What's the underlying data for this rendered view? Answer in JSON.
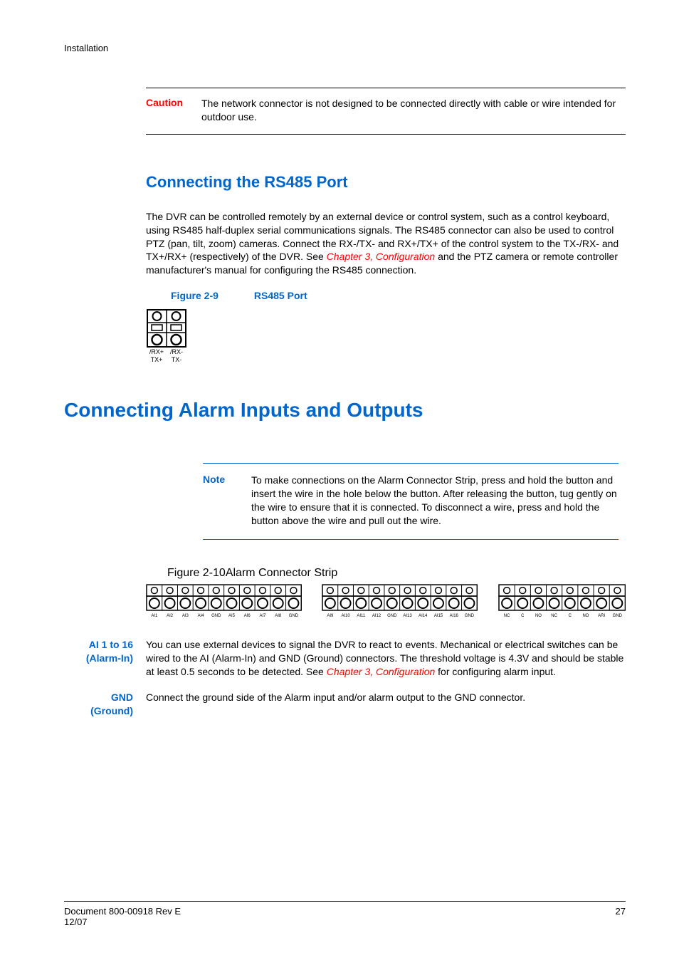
{
  "running_header": "Installation",
  "caution": {
    "label": "Caution",
    "text": "The network connector is not designed to be connected directly with cable or wire intended for outdoor use."
  },
  "section_rs485": {
    "heading": "Connecting the RS485 Port",
    "para_pre": "The DVR can be controlled remotely by an external device or control system, such as a control keyboard, using RS485 half-duplex serial communications signals. The RS485 connector can also be used to control PTZ (pan, tilt, zoom) cameras. Connect the RX-/TX- and RX+/TX+ of the control system to the TX-/RX- and TX+/RX+ (respectively) of the DVR. See ",
    "para_link": "Chapter 3, Configuration",
    "para_post": " and the PTZ camera or remote controller manufacturer's manual for configuring the RS485 connection.",
    "fig_num": "Figure 2-9",
    "fig_title": "RS485 Port",
    "port_labels": {
      "left": "/RX+",
      "right": "/RX-",
      "left2": "TX+",
      "right2": "TX-"
    }
  },
  "section_alarm": {
    "heading": "Connecting Alarm Inputs and Outputs",
    "note_label": "Note",
    "note_text": "To make connections on the Alarm Connector Strip, press and hold the button and insert the wire in the hole below the button. After releasing the button, tug gently on the wire to ensure that it is connected. To disconnect a wire, press and hold the button above the wire and pull out the wire.",
    "fig_num": "Figure 2-10",
    "fig_title": "Alarm Connector Strip",
    "strip1_labels": [
      "AI1",
      "AI2",
      "AI3",
      "AI4",
      "GND",
      "AI5",
      "AI6",
      "AI7",
      "AI8",
      "GND"
    ],
    "strip2_labels": [
      "AI9",
      "AI10",
      "AI11",
      "AI12",
      "GND",
      "AI13",
      "AI14",
      "AI15",
      "AI16",
      "GND"
    ],
    "strip3_labels": [
      "NC",
      "C",
      "NO",
      "NC",
      "C",
      "NO",
      "ARI",
      "GND"
    ],
    "ai_label_1": "AI 1 to 16",
    "ai_label_2": "(Alarm-In)",
    "ai_text_pre": "You can use external devices to signal the DVR to react to events. Mechanical or electrical switches can be wired to the AI (Alarm-In) and GND (Ground) connectors. The threshold voltage is 4.3V and should be stable at least 0.5 seconds to be detected. See ",
    "ai_text_link": "Chapter 3, Configuration",
    "ai_text_post": " for configuring alarm input.",
    "gnd_label_1": "GND",
    "gnd_label_2": "(Ground)",
    "gnd_text": "Connect the ground side of the Alarm input and/or alarm output to the GND connector."
  },
  "footer": {
    "doc": "Document 800-00918 Rev E",
    "date": "12/07",
    "page": "27"
  },
  "colors": {
    "link_blue": "#0066cc",
    "red": "#ff0000",
    "black": "#000000"
  }
}
